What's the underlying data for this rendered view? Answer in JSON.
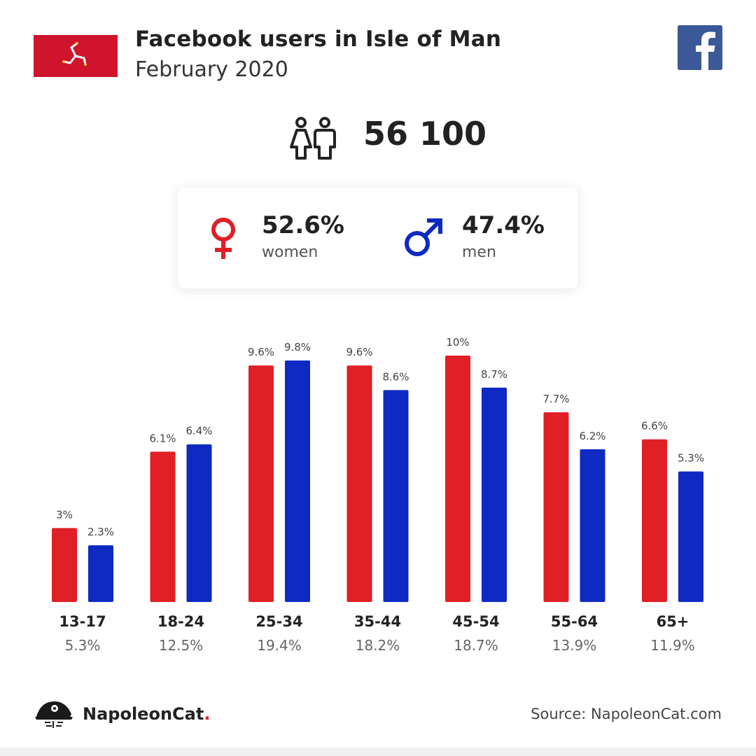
{
  "header": {
    "title": "Facebook users in Isle of Man",
    "subtitle": "February 2020",
    "flag": "isle-of-man-flag",
    "platform_icon": "facebook-icon"
  },
  "summary": {
    "total_users": "56 100",
    "women_pct": "52.6%",
    "women_label": "women",
    "men_pct": "47.4%",
    "men_label": "men"
  },
  "colors": {
    "women": "#e01f26",
    "men": "#0e2ac2",
    "facebook": "#3b5998"
  },
  "chart_data": {
    "type": "bar",
    "categories": [
      "13-17",
      "18-24",
      "25-34",
      "35-44",
      "45-54",
      "55-64",
      "65+"
    ],
    "category_totals": [
      "5.3%",
      "12.5%",
      "19.4%",
      "18.2%",
      "18.7%",
      "13.9%",
      "11.9%"
    ],
    "series": [
      {
        "key": "women",
        "values": [
          3,
          6.1,
          9.6,
          9.6,
          10,
          7.7,
          6.6
        ],
        "labels": [
          "3%",
          "6.1%",
          "9.6%",
          "9.6%",
          "10%",
          "7.7%",
          "6.6%"
        ]
      },
      {
        "key": "men",
        "values": [
          2.3,
          6.4,
          9.8,
          8.6,
          8.7,
          6.2,
          5.3
        ],
        "labels": [
          "2.3%",
          "6.4%",
          "9.8%",
          "8.6%",
          "8.7%",
          "6.2%",
          "5.3%"
        ]
      }
    ],
    "ylim": [
      0,
      10
    ]
  },
  "footer": {
    "brand": "NapoleonCat",
    "brand_dot": ".",
    "source": "Source: NapoleonCat.com"
  }
}
